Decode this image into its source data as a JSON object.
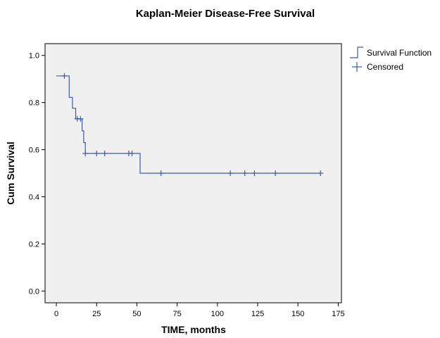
{
  "chart_data": {
    "type": "line",
    "title": "Kaplan-Meier Disease-Free Survival",
    "xlabel": "TIME, months",
    "ylabel": "Cum Survival",
    "xlim": [
      -7,
      177
    ],
    "ylim": [
      -0.05,
      1.05
    ],
    "xticks": [
      0,
      25,
      50,
      75,
      100,
      125,
      150,
      175
    ],
    "xtick_labels": [
      "0",
      "25",
      "50",
      "75",
      "100",
      "125",
      "150",
      "175"
    ],
    "yticks": [
      0.0,
      0.2,
      0.4,
      0.6,
      0.8,
      1.0
    ],
    "ytick_labels": [
      "0.0",
      "0.2",
      "0.4",
      "0.6",
      "0.8",
      "1.0"
    ],
    "grid": false,
    "legend_position": "top-right",
    "colors": {
      "line": "#3c5aa5",
      "plot_background": "#f0f0f0",
      "axis": "#000000"
    },
    "series": [
      {
        "name": "Survival Function",
        "style": "step",
        "x": [
          0,
          8,
          8,
          10,
          10,
          12,
          12,
          16,
          16,
          17,
          17,
          18,
          18,
          52,
          52,
          164
        ],
        "y": [
          0.913,
          0.913,
          0.822,
          0.822,
          0.776,
          0.776,
          0.731,
          0.731,
          0.68,
          0.68,
          0.63,
          0.63,
          0.584,
          0.584,
          0.5,
          0.5
        ]
      },
      {
        "name": "Censored",
        "style": "marker",
        "points": [
          {
            "x": 5,
            "y": 0.913
          },
          {
            "x": 13,
            "y": 0.731
          },
          {
            "x": 15,
            "y": 0.731
          },
          {
            "x": 18,
            "y": 0.584
          },
          {
            "x": 25,
            "y": 0.584
          },
          {
            "x": 30,
            "y": 0.584
          },
          {
            "x": 45,
            "y": 0.584
          },
          {
            "x": 47,
            "y": 0.584
          },
          {
            "x": 65,
            "y": 0.5
          },
          {
            "x": 108,
            "y": 0.5
          },
          {
            "x": 117,
            "y": 0.5
          },
          {
            "x": 123,
            "y": 0.5
          },
          {
            "x": 136,
            "y": 0.5
          },
          {
            "x": 164,
            "y": 0.5
          }
        ]
      }
    ]
  }
}
